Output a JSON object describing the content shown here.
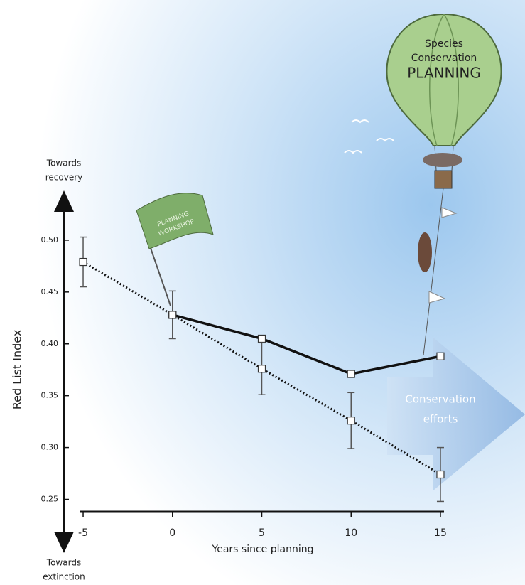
{
  "chart_data": {
    "type": "line",
    "ylabel": "Red List Index",
    "xlabel": "Years since planning",
    "top_label": [
      "Towards",
      "recovery"
    ],
    "bottom_label": [
      "Towards",
      "extinction"
    ],
    "annotations": {
      "flag": [
        "PLANNING",
        "WORKSHOP"
      ],
      "balloon": [
        "Species",
        "Conservation",
        "PLANNING"
      ],
      "arrow": [
        "Conservation",
        "efforts"
      ]
    },
    "x": [
      -5,
      0,
      5,
      10,
      15
    ],
    "xlim": [
      -5.2,
      15.2
    ],
    "xticks": [
      -5,
      0,
      5,
      10,
      15
    ],
    "ylim": [
      0.238,
      0.55
    ],
    "yticks": [
      0.25,
      {
        "value": 0.3,
        "label": "0.30"
      },
      0.35,
      {
        "value": 0.4,
        "label": "0.40"
      },
      0.45,
      {
        "value": 0.5,
        "label": "0.50"
      }
    ],
    "series": [
      {
        "style": "solid",
        "color": "#111111",
        "values": [
          null,
          0.428,
          0.405,
          0.371,
          0.388
        ]
      },
      {
        "style": "dotted",
        "color": "#111111",
        "values": [
          0.479,
          0.428,
          0.376,
          0.326,
          0.274
        ],
        "errors": [
          0.024,
          0.023,
          0.025,
          0.027,
          0.026
        ]
      }
    ]
  }
}
